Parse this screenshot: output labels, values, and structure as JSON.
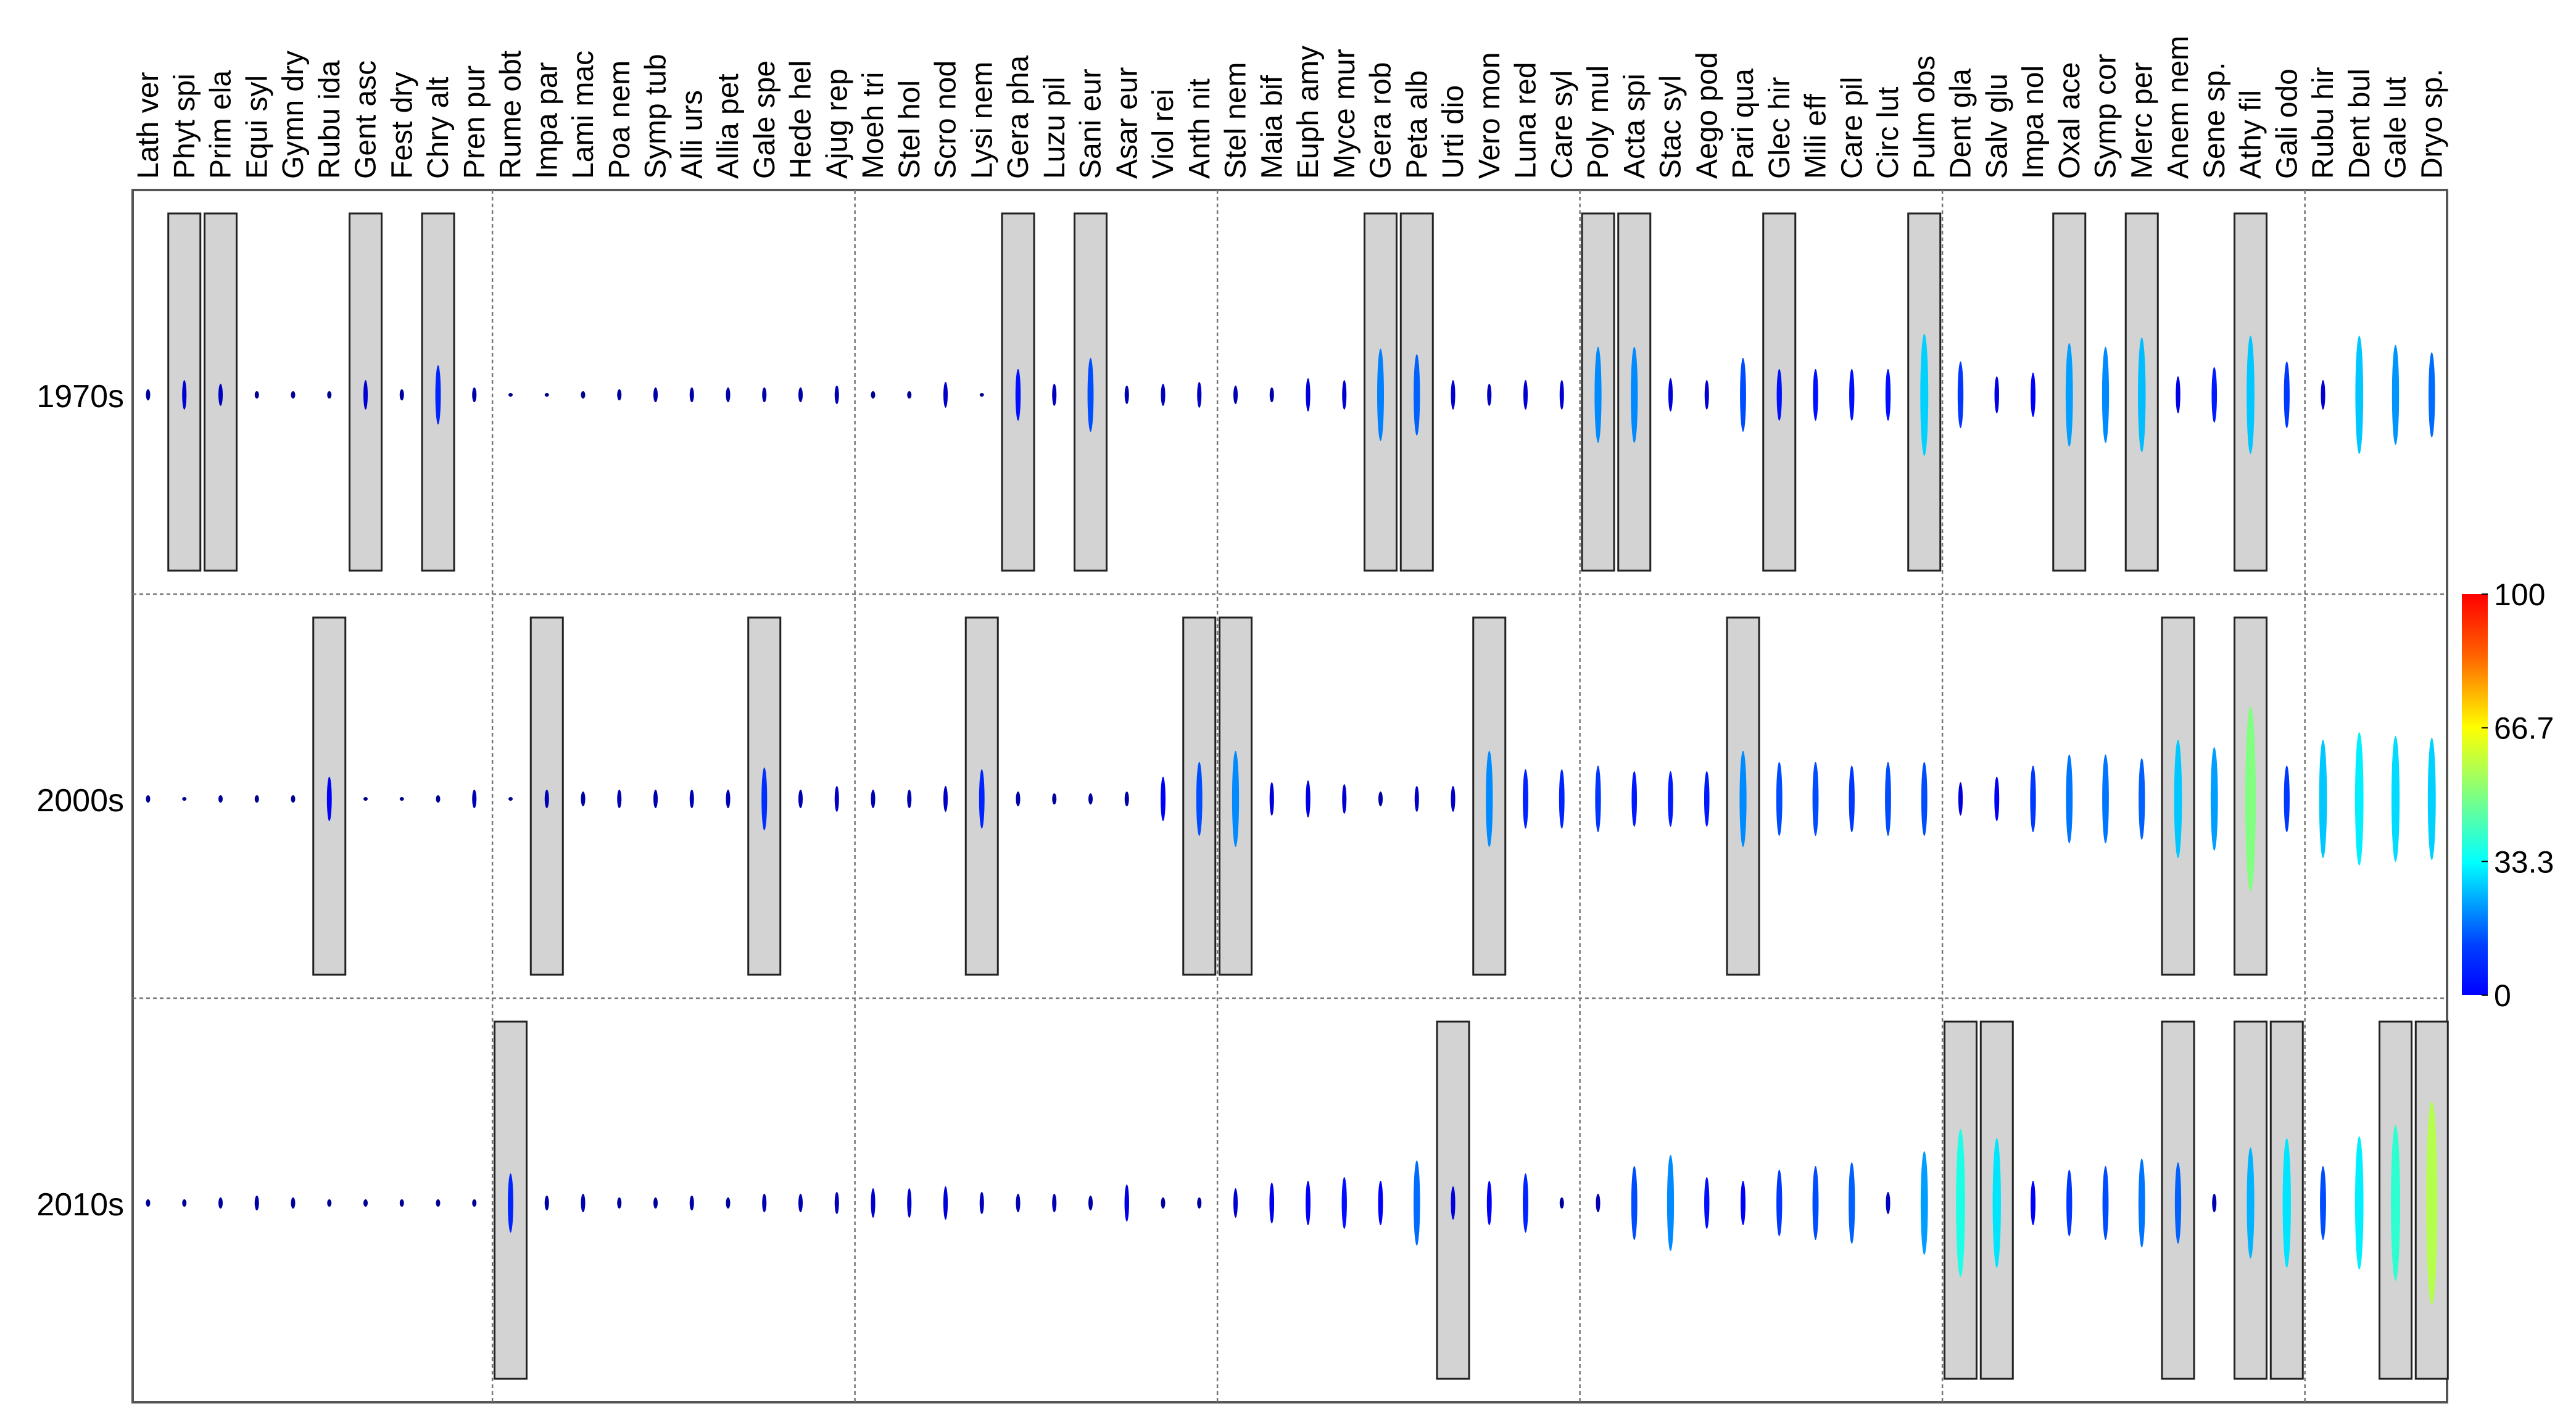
{
  "chart_data": {
    "type": "heatmap",
    "encoding": "ellipse height and color both encode frequency (0-100); gray boxes highlight selected species per period",
    "species": [
      "Lath ver",
      "Phyt spi",
      "Prim ela",
      "Equi syl",
      "Gymn dry",
      "Rubu ida",
      "Gent asc",
      "Fest dry",
      "Chry alt",
      "Pren pur",
      "Rume obt",
      "Impa par",
      "Lami mac",
      "Poa nem",
      "Symp tub",
      "Alli urs",
      "Allia pet",
      "Gale spe",
      "Hede hel",
      "Ajug rep",
      "Moeh tri",
      "Stel hol",
      "Scro nod",
      "Lysi nem",
      "Gera pha",
      "Luzu pil",
      "Sani eur",
      "Asar eur",
      "Viol rei",
      "Anth nit",
      "Stel nem",
      "Maia bif",
      "Euph amy",
      "Myce mur",
      "Gera rob",
      "Peta alb",
      "Urti dio",
      "Vero mon",
      "Luna red",
      "Care syl",
      "Poly mul",
      "Acta spi",
      "Stac syl",
      "Aego pod",
      "Pari qua",
      "Glec hir",
      "Mili eff",
      "Care pil",
      "Circ lut",
      "Pulm obs",
      "Dent gla",
      "Salv glu",
      "Impa nol",
      "Oxal ace",
      "Symp cor",
      "Merc per",
      "Anem nem",
      "Sene sp.",
      "Athy fil",
      "Gali odo",
      "Rubu hir",
      "Dent bul",
      "Gale lut",
      "Dryo sp."
    ],
    "rows": [
      {
        "label": "1970s",
        "values": [
          3,
          8,
          6,
          2,
          2,
          2,
          8,
          3,
          16,
          4,
          1,
          1,
          2,
          3,
          4,
          4,
          4,
          4,
          4,
          5,
          2,
          2,
          7,
          1,
          14,
          6,
          20,
          5,
          6,
          7,
          5,
          4,
          9,
          8,
          25,
          22,
          8,
          6,
          8,
          8,
          26,
          26,
          9,
          8,
          20,
          14,
          14,
          14,
          14,
          33,
          18,
          10,
          12,
          28,
          26,
          31,
          10,
          15,
          32,
          18,
          8,
          32,
          27,
          23
        ],
        "highlighted": [
          1,
          2,
          6,
          8,
          24,
          26,
          34,
          35,
          40,
          41,
          45,
          49,
          53,
          55,
          58
        ]
      },
      {
        "label": "2000s",
        "values": [
          2,
          1,
          2,
          2,
          2,
          12,
          1,
          1,
          2,
          5,
          1,
          5,
          4,
          5,
          5,
          5,
          5,
          17,
          5,
          7,
          5,
          5,
          7,
          16,
          4,
          3,
          3,
          4,
          12,
          20,
          26,
          9,
          10,
          8,
          4,
          7,
          7,
          26,
          16,
          16,
          18,
          15,
          15,
          15,
          26,
          20,
          20,
          18,
          20,
          20,
          9,
          12,
          18,
          24,
          24,
          22,
          32,
          28,
          50,
          18,
          32,
          36,
          34,
          33
        ],
        "highlighted": [
          5,
          11,
          17,
          23,
          29,
          30,
          37,
          44,
          56,
          58
        ]
      },
      {
        "label": "2010s",
        "values": [
          2,
          2,
          3,
          4,
          3,
          2,
          2,
          2,
          2,
          2,
          16,
          4,
          5,
          3,
          3,
          4,
          3,
          5,
          5,
          6,
          8,
          8,
          9,
          6,
          5,
          5,
          4,
          10,
          3,
          3,
          8,
          11,
          12,
          14,
          12,
          23,
          9,
          12,
          16,
          3,
          5,
          20,
          26,
          14,
          12,
          18,
          20,
          22,
          6,
          28,
          40,
          35,
          12,
          18,
          20,
          24,
          22,
          5,
          30,
          35,
          20,
          36,
          42,
          55
        ],
        "highlighted": [
          10,
          36,
          50,
          51,
          56,
          58,
          59,
          62,
          63
        ]
      }
    ],
    "groups": [
      [
        0,
        9
      ],
      [
        10,
        19
      ],
      [
        20,
        29
      ],
      [
        30,
        39
      ],
      [
        40,
        49
      ],
      [
        50,
        59
      ],
      [
        60,
        63
      ]
    ],
    "colorbar": {
      "min": 0,
      "max": 100,
      "ticks": [
        "100",
        "66.7",
        "33.3",
        "0"
      ]
    }
  }
}
